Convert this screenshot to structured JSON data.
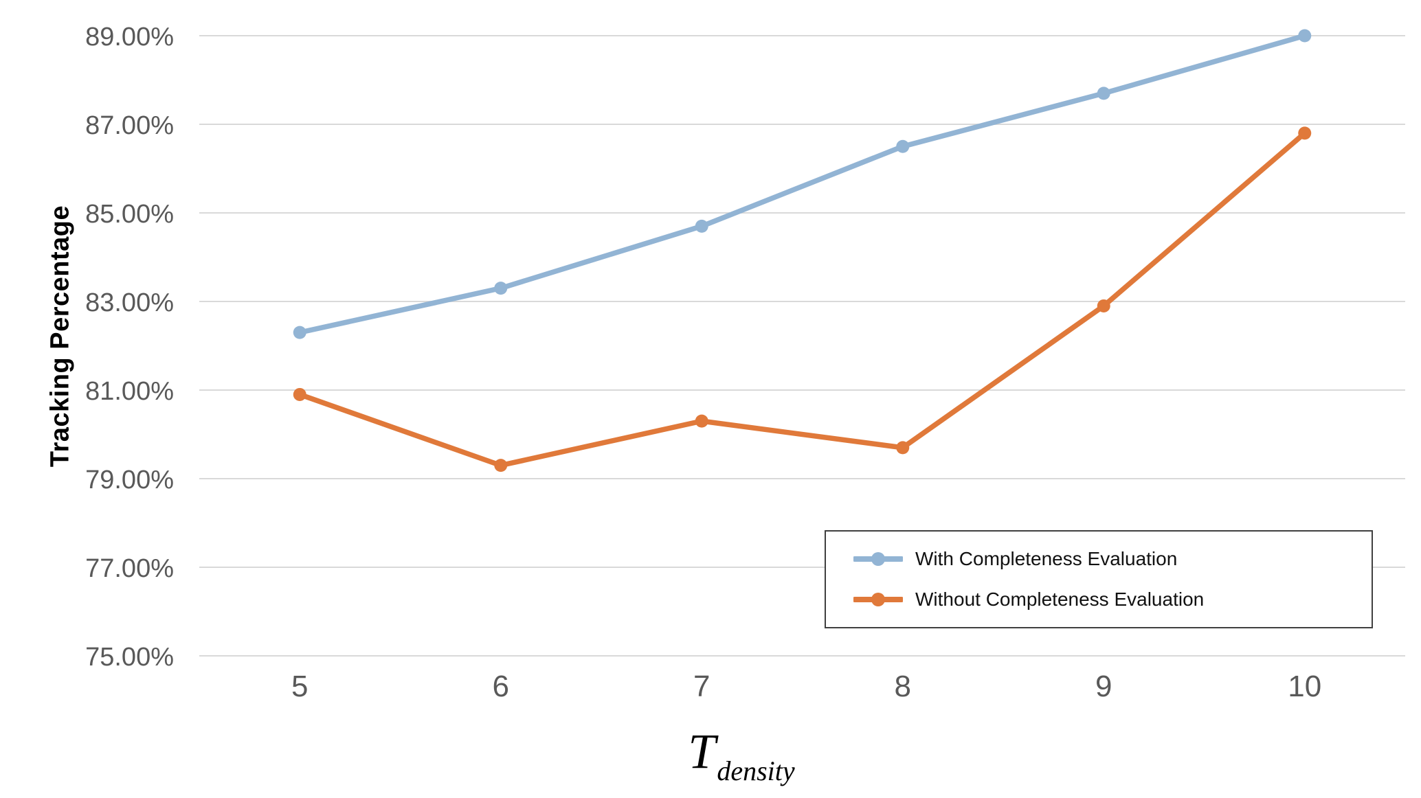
{
  "chart_data": {
    "type": "line",
    "title": "",
    "x_categories": [
      "5",
      "6",
      "7",
      "8",
      "9",
      "10"
    ],
    "series": [
      {
        "name": "With Completeness Evaluation",
        "color": "#92B4D4",
        "values": [
          82.3,
          83.3,
          84.7,
          86.5,
          87.7,
          89.0
        ]
      },
      {
        "name": "Without Completeness Evaluation",
        "color": "#E0793A",
        "values": [
          80.9,
          79.3,
          80.3,
          79.7,
          82.9,
          86.8
        ]
      }
    ],
    "ylabel": "Tracking Percentage",
    "xlabel": {
      "base": "T",
      "sub": "density"
    },
    "ylim": [
      75,
      89
    ],
    "ytick_step": 2,
    "ytick_labels": [
      "89.00%",
      "87.00%",
      "85.00%",
      "83.00%",
      "81.00%",
      "79.00%",
      "77.00%",
      "75.00%"
    ],
    "grid": "horizontal",
    "gridline_color": "#D9D9D9",
    "tick_label_color": "#595959",
    "legend_position": "inside-bottom-right",
    "legend_border_color": "#3F3F3F"
  }
}
